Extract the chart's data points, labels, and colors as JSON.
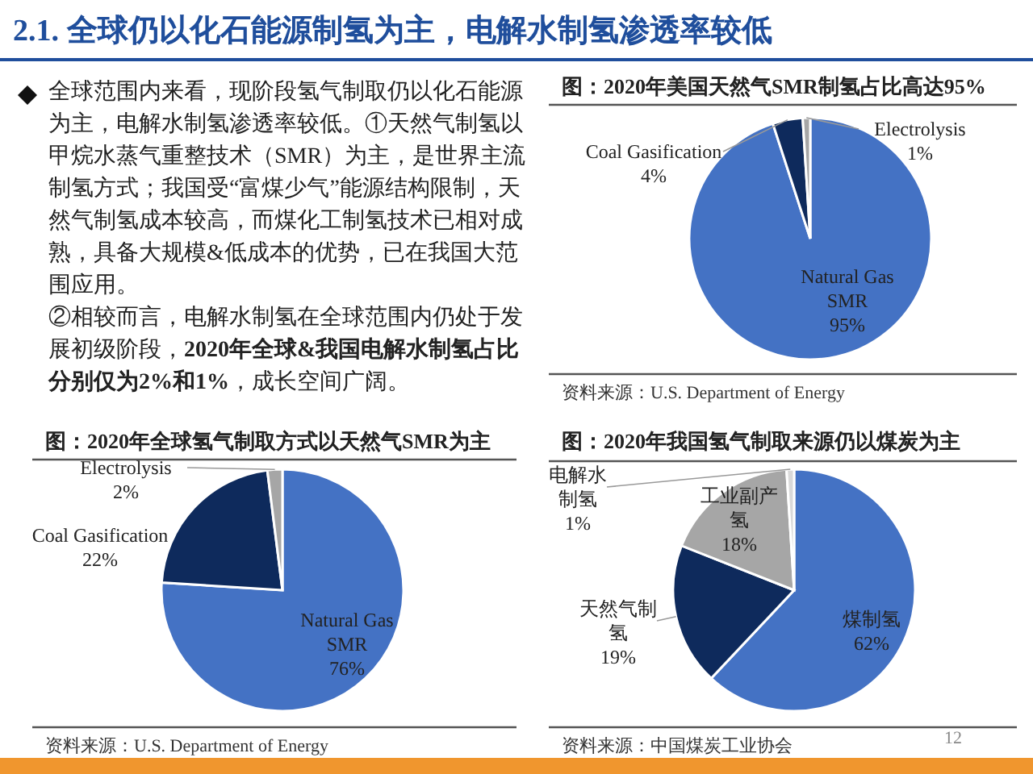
{
  "chart_data": [
    {
      "type": "other",
      "title": "2.1. 全球仍以化石能源制氢为主，电解水制氢渗透率较低",
      "annotations": [
        "全球范围内来看，现阶段氢气制取仍以化石能源为主，电解水制氢渗透率较低。①天然气制氢以甲烷水蒸气重整技术（SMR）为主，是世界主流制氢方式；我国受“富煤少气”能源结构限制，天然气制氢成本较高，而煤化工制氢技术已相对成熟，具备大规模&低成本的优势，已在我国大范围应用。",
        "②相较而言，电解水制氢在全球范围内仍处于发展初级阶段，**2020年全球&我国电解水制氢占比分别仅为2%和1%**，成长空间广阔。",
        "12"
      ]
    },
    {
      "type": "pie",
      "title": "图：2020年美国天然气SMR制氢占比高达95%",
      "categories": [
        "Natural Gas SMR",
        "Coal Gasification",
        "Electrolysis"
      ],
      "values": [
        95,
        4,
        1
      ],
      "colors": [
        "#4472c4",
        "#0e2a5c",
        "#a6a6a6"
      ],
      "value_labels": [
        "95%",
        "4%",
        "1%"
      ],
      "annotations": [
        "资料来源：U.S. Department of Energy"
      ]
    },
    {
      "type": "pie",
      "title": "图：2020年全球氢气制取方式以天然气SMR为主",
      "categories": [
        "Natural Gas SMR",
        "Coal Gasification",
        "Electrolysis"
      ],
      "values": [
        76,
        22,
        2
      ],
      "colors": [
        "#4472c4",
        "#0e2a5c",
        "#a6a6a6"
      ],
      "value_labels": [
        "76%",
        "22%",
        "2%"
      ],
      "annotations": [
        "资料来源：U.S. Department of Energy"
      ]
    },
    {
      "type": "pie",
      "title": "图：2020年我国氢气制取来源仍以煤炭为主",
      "categories": [
        "煤制氢",
        "天然气制氢",
        "工业副产氢",
        "电解水制氢"
      ],
      "values": [
        62,
        19,
        18,
        1
      ],
      "colors": [
        "#4472c4",
        "#0e2a5c",
        "#a6a6a6",
        "#d9d9d9"
      ],
      "value_labels": [
        "62%",
        "19%",
        "18%",
        "1%"
      ],
      "annotations": [
        "资料来源：中国煤炭工业协会"
      ]
    }
  ]
}
